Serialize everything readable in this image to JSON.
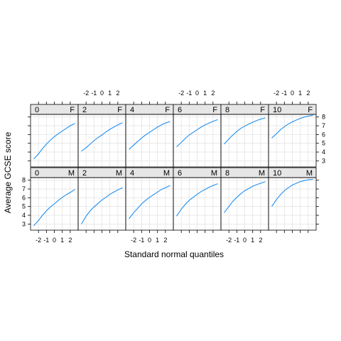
{
  "chart_data": {
    "type": "line",
    "layout": "lattice-2x6",
    "xlabel": "Standard normal quantiles",
    "ylabel": "Average GCSE score",
    "xlim": [
      -3.0,
      3.0
    ],
    "ylim": [
      2.3,
      8.3
    ],
    "x_ticks": [
      -2,
      -1,
      0,
      1,
      2
    ],
    "x_tick_labels": [
      "-2",
      "-1",
      "0",
      "1",
      "2"
    ],
    "y_ticks": [
      3,
      4,
      5,
      6,
      7,
      8
    ],
    "y_tick_labels": [
      "3",
      "4",
      "5",
      "6",
      "7",
      "8"
    ],
    "grid": true,
    "line_color": "#1f8ff0",
    "strip_color": "#e6e6e6",
    "x": [
      -2.6,
      -2.0,
      -1.5,
      -1.0,
      -0.5,
      0.0,
      0.5,
      1.0,
      1.5,
      2.0,
      2.6
    ],
    "panels": [
      {
        "row": "top",
        "age": "0",
        "gender": "F",
        "y": [
          3.2,
          3.8,
          4.4,
          4.9,
          5.35,
          5.75,
          6.1,
          6.4,
          6.7,
          7.0,
          7.25
        ]
      },
      {
        "row": "top",
        "age": "2",
        "gender": "F",
        "y": [
          4.1,
          4.5,
          4.9,
          5.3,
          5.65,
          5.95,
          6.3,
          6.6,
          6.85,
          7.1,
          7.35
        ]
      },
      {
        "row": "top",
        "age": "4",
        "gender": "F",
        "y": [
          4.3,
          4.8,
          5.2,
          5.6,
          5.95,
          6.25,
          6.55,
          6.85,
          7.1,
          7.3,
          7.5
        ]
      },
      {
        "row": "top",
        "age": "6",
        "gender": "F",
        "y": [
          4.6,
          5.1,
          5.55,
          5.95,
          6.25,
          6.55,
          6.85,
          7.1,
          7.3,
          7.5,
          7.7
        ]
      },
      {
        "row": "top",
        "age": "8",
        "gender": "F",
        "y": [
          4.9,
          5.5,
          5.95,
          6.35,
          6.7,
          6.95,
          7.2,
          7.4,
          7.6,
          7.75,
          7.9
        ]
      },
      {
        "row": "top",
        "age": "10",
        "gender": "F",
        "y": [
          5.6,
          6.1,
          6.55,
          6.9,
          7.2,
          7.45,
          7.65,
          7.85,
          8.0,
          8.1,
          8.2
        ]
      },
      {
        "row": "bottom",
        "age": "0",
        "gender": "M",
        "y": [
          2.8,
          3.4,
          4.0,
          4.5,
          4.95,
          5.3,
          5.7,
          6.05,
          6.35,
          6.6,
          6.95
        ]
      },
      {
        "row": "bottom",
        "age": "2",
        "gender": "M",
        "y": [
          3.0,
          3.9,
          4.5,
          4.95,
          5.35,
          5.75,
          6.05,
          6.4,
          6.65,
          6.9,
          7.15
        ]
      },
      {
        "row": "bottom",
        "age": "4",
        "gender": "M",
        "y": [
          3.6,
          4.3,
          4.8,
          5.3,
          5.7,
          6.05,
          6.35,
          6.65,
          6.95,
          7.15,
          7.4
        ]
      },
      {
        "row": "bottom",
        "age": "6",
        "gender": "M",
        "y": [
          3.9,
          4.7,
          5.25,
          5.7,
          6.05,
          6.4,
          6.7,
          6.95,
          7.2,
          7.4,
          7.6
        ]
      },
      {
        "row": "bottom",
        "age": "8",
        "gender": "M",
        "y": [
          4.3,
          5.0,
          5.6,
          6.05,
          6.45,
          6.8,
          7.05,
          7.3,
          7.5,
          7.65,
          7.85
        ]
      },
      {
        "row": "bottom",
        "age": "10",
        "gender": "M",
        "y": [
          5.0,
          5.8,
          6.35,
          6.8,
          7.15,
          7.45,
          7.65,
          7.85,
          7.95,
          8.05,
          8.1
        ]
      }
    ]
  }
}
